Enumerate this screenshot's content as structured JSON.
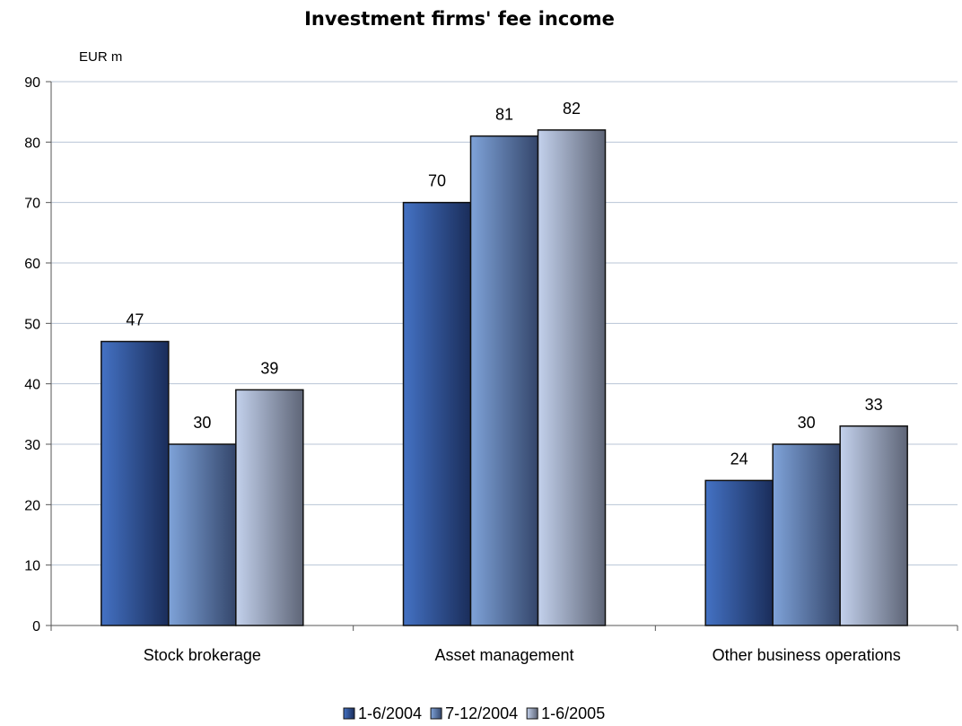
{
  "chart_data": {
    "type": "bar",
    "title": "Investment firms' fee income",
    "unit_label": "EUR m",
    "categories": [
      "Stock brokerage",
      "Asset management",
      "Other business operations"
    ],
    "series": [
      {
        "name": "1-6/2004",
        "values": [
          47,
          70,
          24
        ],
        "labels": [
          "47",
          "70",
          "24"
        ],
        "color": "#2f5597"
      },
      {
        "name": "7-12/2004",
        "values": [
          30,
          81,
          30
        ],
        "labels": [
          "30",
          "81",
          "30"
        ],
        "color": "#6f8fc4"
      },
      {
        "name": "1-6/2005",
        "values": [
          39,
          82,
          33
        ],
        "labels": [
          "39",
          "82",
          "33"
        ],
        "color": "#a9b7d6"
      }
    ],
    "ylim": [
      0,
      90
    ],
    "yticks": [
      0,
      10,
      20,
      30,
      40,
      50,
      60,
      70,
      80,
      90
    ],
    "ytick_labels": [
      "0",
      "10",
      "20",
      "30",
      "40",
      "50",
      "60",
      "70",
      "80",
      "90"
    ],
    "grid": true,
    "legend": "bottom-center"
  }
}
